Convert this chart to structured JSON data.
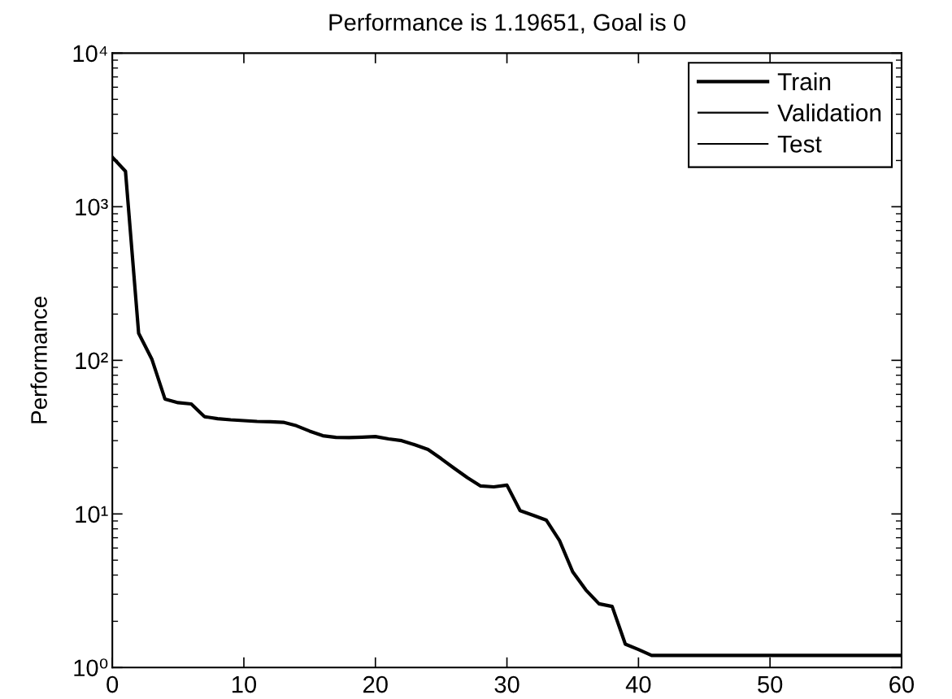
{
  "chart_data": {
    "type": "line",
    "title": "Performance is 1.19651, Goal is 0",
    "ylabel": "Performance",
    "x": [
      0,
      1,
      2,
      3,
      4,
      5,
      6,
      7,
      8,
      9,
      10,
      11,
      12,
      13,
      14,
      15,
      16,
      17,
      18,
      19,
      20,
      21,
      22,
      23,
      24,
      25,
      26,
      27,
      28,
      29,
      30,
      31,
      32,
      33,
      34,
      35,
      36,
      37,
      38,
      39,
      40,
      41,
      42,
      43,
      44,
      45,
      46,
      47,
      48,
      49,
      50,
      51,
      52,
      53,
      54,
      55,
      56,
      57,
      58,
      59,
      60
    ],
    "series": [
      {
        "name": "Train",
        "color": "#000000",
        "values": [
          2100,
          1700,
          150,
          102,
          56,
          53,
          52,
          43,
          41.7,
          41,
          40.5,
          40,
          39.8,
          39.5,
          37.5,
          34.6,
          32.3,
          31.5,
          31.4,
          31.6,
          31.9,
          30.8,
          30,
          28.2,
          26.3,
          22.9,
          19.8,
          17.2,
          15.2,
          15,
          15.4,
          10.5,
          9.8,
          9.1,
          6.7,
          4.2,
          3.2,
          2.6,
          2.5,
          1.42,
          1.31,
          1.2,
          1.2,
          1.2,
          1.2,
          1.2,
          1.2,
          1.2,
          1.2,
          1.2,
          1.2,
          1.2,
          1.2,
          1.2,
          1.2,
          1.2,
          1.2,
          1.2,
          1.2,
          1.2,
          1.2
        ]
      },
      {
        "name": "Validation",
        "color": "#000000",
        "values": [
          null,
          null,
          null,
          null,
          null,
          null,
          null,
          null,
          null,
          null,
          null,
          null,
          null,
          null,
          null,
          null,
          null,
          null,
          null,
          null,
          null,
          null,
          null,
          null,
          null,
          null,
          null,
          null,
          null,
          null,
          null,
          null,
          null,
          null,
          null,
          null,
          null,
          null,
          null,
          null,
          null,
          null,
          null,
          null,
          null,
          null,
          null,
          null,
          null,
          null,
          null,
          null,
          null,
          null,
          null,
          null,
          null,
          null,
          null,
          null,
          null
        ]
      },
      {
        "name": "Test",
        "color": "#000000",
        "values": [
          null,
          null,
          null,
          null,
          null,
          null,
          null,
          null,
          null,
          null,
          null,
          null,
          null,
          null,
          null,
          null,
          null,
          null,
          null,
          null,
          null,
          null,
          null,
          null,
          null,
          null,
          null,
          null,
          null,
          null,
          null,
          null,
          null,
          null,
          null,
          null,
          null,
          null,
          null,
          null,
          null,
          null,
          null,
          null,
          null,
          null,
          null,
          null,
          null,
          null,
          null,
          null,
          null,
          null,
          null,
          null,
          null,
          null,
          null,
          null,
          null
        ]
      }
    ],
    "log": "y",
    "xlim": [
      0,
      60
    ],
    "xticks": [
      0,
      10,
      20,
      30,
      40,
      50,
      60
    ],
    "ylim": [
      1,
      10000
    ],
    "yticks": [
      {
        "value": 1,
        "label": "10⁰"
      },
      {
        "value": 10,
        "label": "10¹"
      },
      {
        "value": 100,
        "label": "10²"
      },
      {
        "value": 1000,
        "label": "10³"
      },
      {
        "value": 10000,
        "label": "10⁴"
      }
    ],
    "legend": "top right",
    "grid": false,
    "marker": "none",
    "line_style": "solid"
  }
}
